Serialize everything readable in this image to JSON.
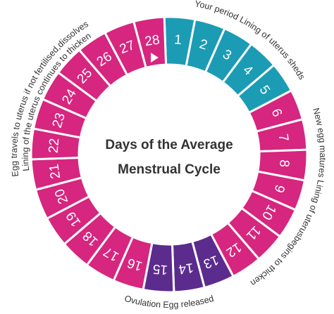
{
  "title": [
    "Days of the Average",
    "Menstrual Cycle"
  ],
  "phases": [
    {
      "color": "#1b9cb4",
      "days": [
        "1",
        "2",
        "3",
        "4",
        "5"
      ]
    },
    {
      "color": "#d6267f",
      "days": [
        "6",
        "7",
        "8",
        "9",
        "10",
        "11",
        "12"
      ]
    },
    {
      "color": "#5c2b8e",
      "days": [
        "13",
        "14",
        "15"
      ]
    },
    {
      "color": "#d6267f",
      "days": [
        "16",
        "17",
        "18",
        "19",
        "20",
        "21",
        "22",
        "23",
        "24",
        "25",
        "26",
        "27",
        "28"
      ]
    }
  ],
  "captions": [
    "Your period Lining of uterus sheds",
    "New egg matures Lining of uterusbegins to thicken",
    "Ovulation Egg released",
    "Egg travels to uterus if not fertilised,dissolves",
    "Lining of the uterus continues to thicken"
  ]
}
